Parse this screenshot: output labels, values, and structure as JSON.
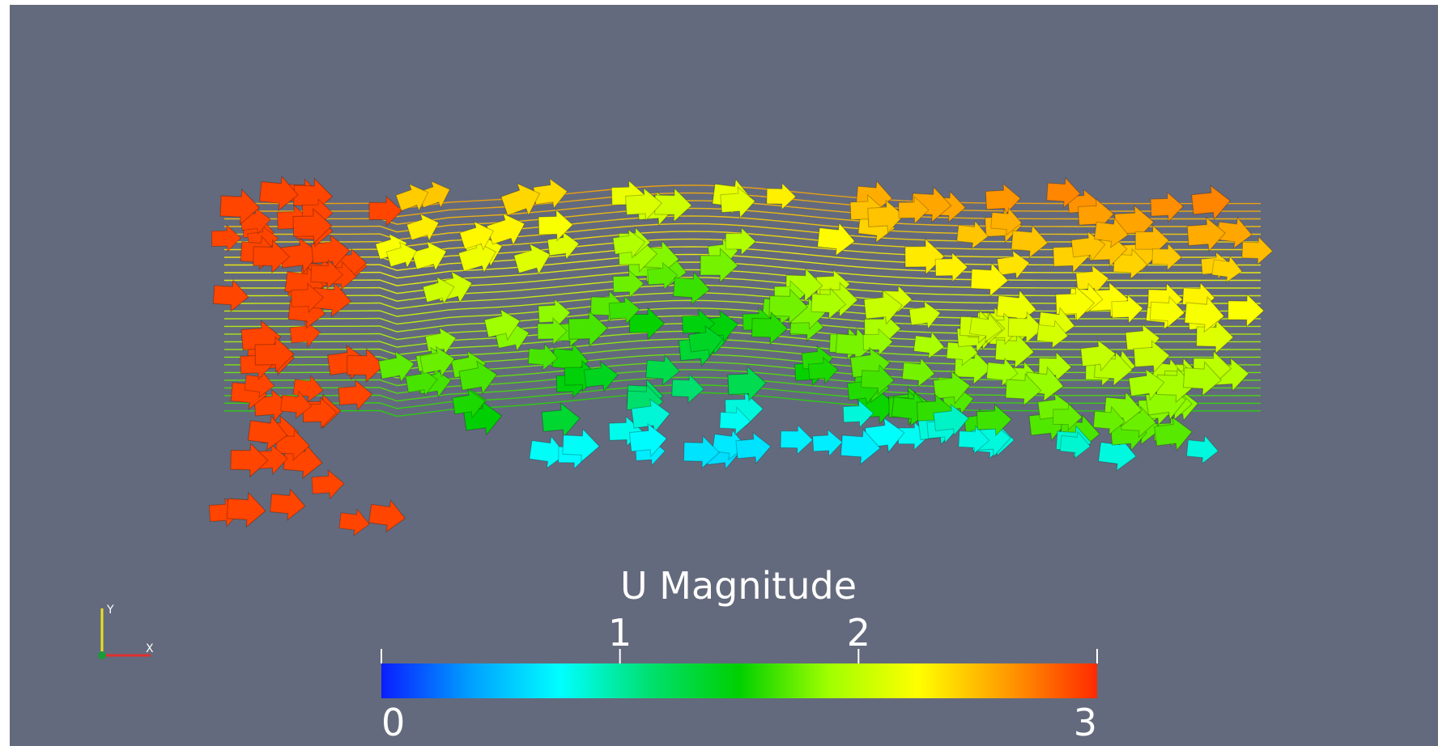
{
  "colorbar": {
    "title": "U Magnitude",
    "range": [
      0,
      3
    ],
    "ticks": [
      0,
      1,
      2,
      3
    ],
    "colors": [
      "#0a1eff",
      "#00a0ff",
      "#00ffff",
      "#00e070",
      "#00d000",
      "#a0ff00",
      "#ffff00",
      "#ff9a00",
      "#ff2a00"
    ]
  },
  "axes_triad": {
    "x_label": "X",
    "y_label": "Y"
  }
}
